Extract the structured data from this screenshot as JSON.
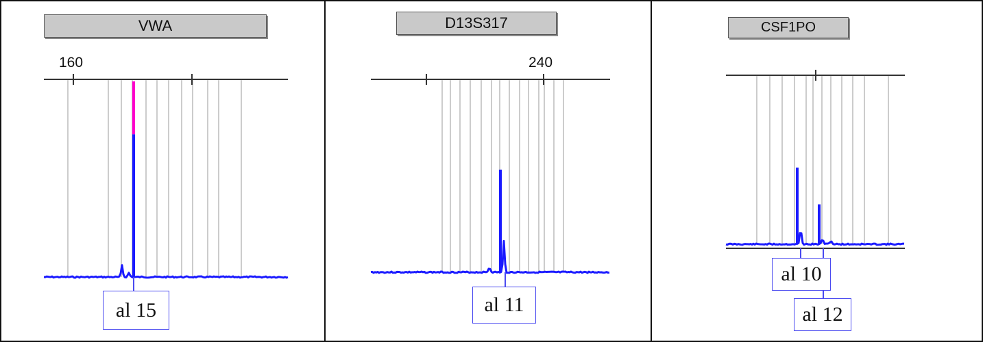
{
  "colors": {
    "trace": "#1a1aff",
    "highlight": "#ff00cc",
    "bin_line": "#cccccc",
    "axis": "#333333",
    "allele_border": "#4a4af0",
    "marker_box_fill": "#c9c9c9"
  },
  "chart_data": [
    {
      "type": "line",
      "marker": "VWA",
      "scale_label": "160",
      "peaks": [
        {
          "label": "al 15",
          "relative_height": 1.0,
          "highlighted": true
        },
        {
          "label": "",
          "relative_height": 0.06,
          "highlighted": false
        }
      ]
    },
    {
      "type": "line",
      "marker": "D13S317",
      "scale_label": "240",
      "peaks": [
        {
          "label": "al 11",
          "relative_height": 1.0,
          "highlighted": false
        }
      ]
    },
    {
      "type": "line",
      "marker": "CSF1PO",
      "scale_label": "",
      "peaks": [
        {
          "label": "al 10",
          "relative_height": 1.0,
          "highlighted": false
        },
        {
          "label": "al 12",
          "relative_height": 0.52,
          "highlighted": false
        }
      ]
    }
  ]
}
